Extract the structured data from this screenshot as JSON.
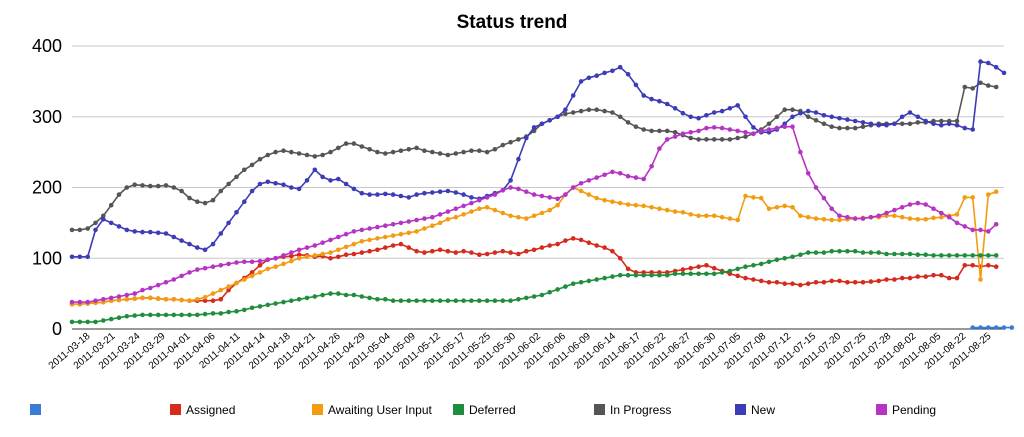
{
  "chart_data": {
    "type": "line",
    "title": "Status trend",
    "xlabel": "",
    "ylabel": "",
    "ylim": [
      0,
      400
    ],
    "yticks": [
      "0",
      "100",
      "200",
      "300",
      "400"
    ],
    "grid": true,
    "legend_position": "bottom",
    "x_tick_labels": [
      "2011-03-18",
      "2011-03-21",
      "2011-03-24",
      "2011-03-29",
      "2011-04-01",
      "2011-04-06",
      "2011-04-11",
      "2011-04-14",
      "2011-04-18",
      "2011-04-21",
      "2011-04-26",
      "2011-04-29",
      "2011-05-04",
      "2011-05-09",
      "2011-05-12",
      "2011-05-17",
      "2011-05-25",
      "2011-05-30",
      "2011-06-02",
      "2011-06-06",
      "2011-06-09",
      "2011-06-14",
      "2011-06-17",
      "2011-06-22",
      "2011-06-27",
      "2011-06-30",
      "2011-07-05",
      "2011-07-08",
      "2011-07-12",
      "2011-07-15",
      "2011-07-20",
      "2011-07-25",
      "2011-07-28",
      "2011-08-02",
      "2011-08-05",
      "2011-08-22",
      "2011-08-25"
    ],
    "series": [
      {
        "name": "",
        "color": "#3a7bd5",
        "start": 115,
        "values": [
          2,
          2,
          2,
          2,
          2,
          2
        ]
      },
      {
        "name": "Assigned",
        "color": "#d62a1e",
        "start": 0,
        "values": [
          35,
          35,
          36,
          37,
          38,
          40,
          41,
          42,
          43,
          44,
          44,
          43,
          42,
          42,
          41,
          40,
          40,
          40,
          40,
          42,
          55,
          65,
          72,
          80,
          90,
          98,
          100,
          102,
          103,
          105,
          104,
          102,
          103,
          100,
          102,
          105,
          106,
          108,
          110,
          112,
          115,
          118,
          120,
          115,
          110,
          108,
          110,
          112,
          110,
          108,
          110,
          108,
          105,
          106,
          108,
          110,
          108,
          106,
          110,
          112,
          115,
          118,
          120,
          125,
          128,
          126,
          122,
          118,
          115,
          110,
          100,
          85,
          80,
          80,
          80,
          80,
          80,
          82,
          84,
          86,
          88,
          90,
          86,
          82,
          78,
          75,
          72,
          70,
          68,
          66,
          66,
          64,
          64,
          62,
          64,
          66,
          66,
          68,
          68,
          66,
          66,
          66,
          67,
          68,
          70,
          70,
          72,
          72,
          74,
          74,
          76,
          76,
          72,
          72,
          90,
          90,
          88,
          90,
          88
        ]
      },
      {
        "name": "Awaiting User Input",
        "color": "#f39c12",
        "start": 0,
        "values": [
          35,
          35,
          36,
          37,
          38,
          40,
          41,
          42,
          43,
          44,
          44,
          43,
          42,
          42,
          41,
          40,
          42,
          45,
          50,
          55,
          60,
          65,
          70,
          75,
          80,
          85,
          88,
          92,
          96,
          100,
          102,
          104,
          106,
          108,
          112,
          116,
          120,
          124,
          126,
          128,
          130,
          132,
          134,
          136,
          138,
          142,
          146,
          150,
          155,
          158,
          162,
          166,
          170,
          172,
          168,
          164,
          160,
          158,
          156,
          160,
          164,
          168,
          175,
          190,
          200,
          195,
          190,
          185,
          182,
          180,
          178,
          176,
          175,
          174,
          172,
          170,
          168,
          166,
          165,
          162,
          160,
          160,
          160,
          158,
          156,
          154,
          188,
          186,
          185,
          170,
          172,
          174,
          172,
          160,
          158,
          156,
          155,
          154,
          154,
          155,
          156,
          157,
          158,
          158,
          160,
          160,
          158,
          156,
          155,
          155,
          157,
          158,
          160,
          162,
          186,
          186,
          70,
          190,
          194
        ]
      },
      {
        "name": "Deferred",
        "color": "#1e8e3e",
        "start": 0,
        "values": [
          10,
          10,
          10,
          10,
          12,
          14,
          16,
          18,
          19,
          20,
          20,
          20,
          20,
          20,
          20,
          20,
          20,
          21,
          22,
          22,
          24,
          25,
          27,
          30,
          32,
          34,
          36,
          38,
          40,
          42,
          44,
          46,
          48,
          50,
          50,
          48,
          48,
          46,
          44,
          42,
          42,
          40,
          40,
          40,
          40,
          40,
          40,
          40,
          40,
          40,
          40,
          40,
          40,
          40,
          40,
          40,
          40,
          42,
          44,
          46,
          48,
          52,
          56,
          60,
          64,
          66,
          68,
          70,
          72,
          74,
          76,
          76,
          76,
          76,
          76,
          76,
          76,
          78,
          78,
          78,
          78,
          78,
          78,
          80,
          82,
          85,
          88,
          90,
          92,
          95,
          98,
          100,
          102,
          105,
          108,
          108,
          108,
          110,
          110,
          110,
          110,
          108,
          108,
          108,
          106,
          106,
          106,
          106,
          105,
          105,
          104,
          104,
          104,
          104,
          104,
          104,
          104,
          104,
          104
        ]
      },
      {
        "name": "In Progress",
        "color": "#555555",
        "start": 0,
        "values": [
          140,
          140,
          142,
          150,
          160,
          175,
          190,
          200,
          204,
          203,
          202,
          202,
          203,
          200,
          195,
          185,
          180,
          178,
          182,
          195,
          205,
          215,
          225,
          232,
          240,
          246,
          250,
          252,
          250,
          248,
          246,
          244,
          246,
          250,
          256,
          262,
          262,
          258,
          254,
          250,
          248,
          250,
          252,
          254,
          256,
          252,
          250,
          248,
          246,
          248,
          250,
          252,
          252,
          250,
          254,
          260,
          264,
          268,
          272,
          280,
          290,
          295,
          300,
          304,
          306,
          308,
          310,
          310,
          308,
          306,
          300,
          292,
          286,
          282,
          280,
          280,
          280,
          278,
          274,
          270,
          268,
          268,
          268,
          268,
          268,
          270,
          272,
          276,
          282,
          290,
          300,
          310,
          310,
          308,
          300,
          295,
          290,
          286,
          284,
          284,
          284,
          286,
          288,
          290,
          290,
          290,
          290,
          290,
          292,
          292,
          294,
          294,
          294,
          294,
          342,
          340,
          348,
          344,
          342
        ]
      },
      {
        "name": "New",
        "color": "#3c3cb8",
        "start": 0,
        "values": [
          102,
          102,
          102,
          140,
          155,
          150,
          145,
          140,
          138,
          137,
          137,
          136,
          135,
          130,
          125,
          120,
          115,
          112,
          120,
          135,
          150,
          165,
          180,
          195,
          205,
          208,
          206,
          204,
          200,
          198,
          210,
          225,
          215,
          210,
          212,
          205,
          198,
          192,
          190,
          190,
          191,
          190,
          188,
          186,
          190,
          192,
          193,
          194,
          195,
          193,
          190,
          186,
          184,
          188,
          192,
          196,
          210,
          240,
          270,
          285,
          290,
          295,
          300,
          310,
          330,
          350,
          355,
          358,
          362,
          365,
          370,
          360,
          345,
          330,
          325,
          322,
          318,
          312,
          305,
          300,
          298,
          302,
          306,
          308,
          312,
          316,
          300,
          285,
          278,
          278,
          282,
          290,
          300,
          305,
          308,
          306,
          302,
          300,
          298,
          296,
          294,
          292,
          290,
          288,
          288,
          290,
          300,
          306,
          300,
          294,
          290,
          288,
          290,
          288,
          284,
          282,
          378,
          376,
          370,
          362
        ]
      },
      {
        "name": "Pending",
        "color": "#b534c4",
        "start": 0,
        "values": [
          38,
          38,
          38,
          40,
          42,
          44,
          46,
          48,
          50,
          55,
          58,
          62,
          66,
          70,
          75,
          80,
          84,
          86,
          88,
          90,
          92,
          94,
          95,
          95,
          96,
          98,
          100,
          104,
          108,
          112,
          115,
          118,
          122,
          126,
          130,
          134,
          138,
          140,
          142,
          144,
          146,
          148,
          150,
          152,
          154,
          156,
          158,
          162,
          166,
          170,
          174,
          178,
          182,
          186,
          190,
          196,
          200,
          198,
          194,
          190,
          188,
          186,
          184,
          190,
          200,
          206,
          210,
          214,
          218,
          222,
          220,
          216,
          214,
          212,
          230,
          255,
          268,
          272,
          276,
          278,
          280,
          284,
          285,
          284,
          282,
          280,
          278,
          276,
          280,
          282,
          284,
          286,
          286,
          250,
          220,
          200,
          185,
          170,
          160,
          158,
          156,
          156,
          158,
          160,
          164,
          168,
          172,
          176,
          178,
          176,
          170,
          164,
          158,
          150,
          145,
          140,
          140,
          138,
          148
        ]
      }
    ]
  }
}
